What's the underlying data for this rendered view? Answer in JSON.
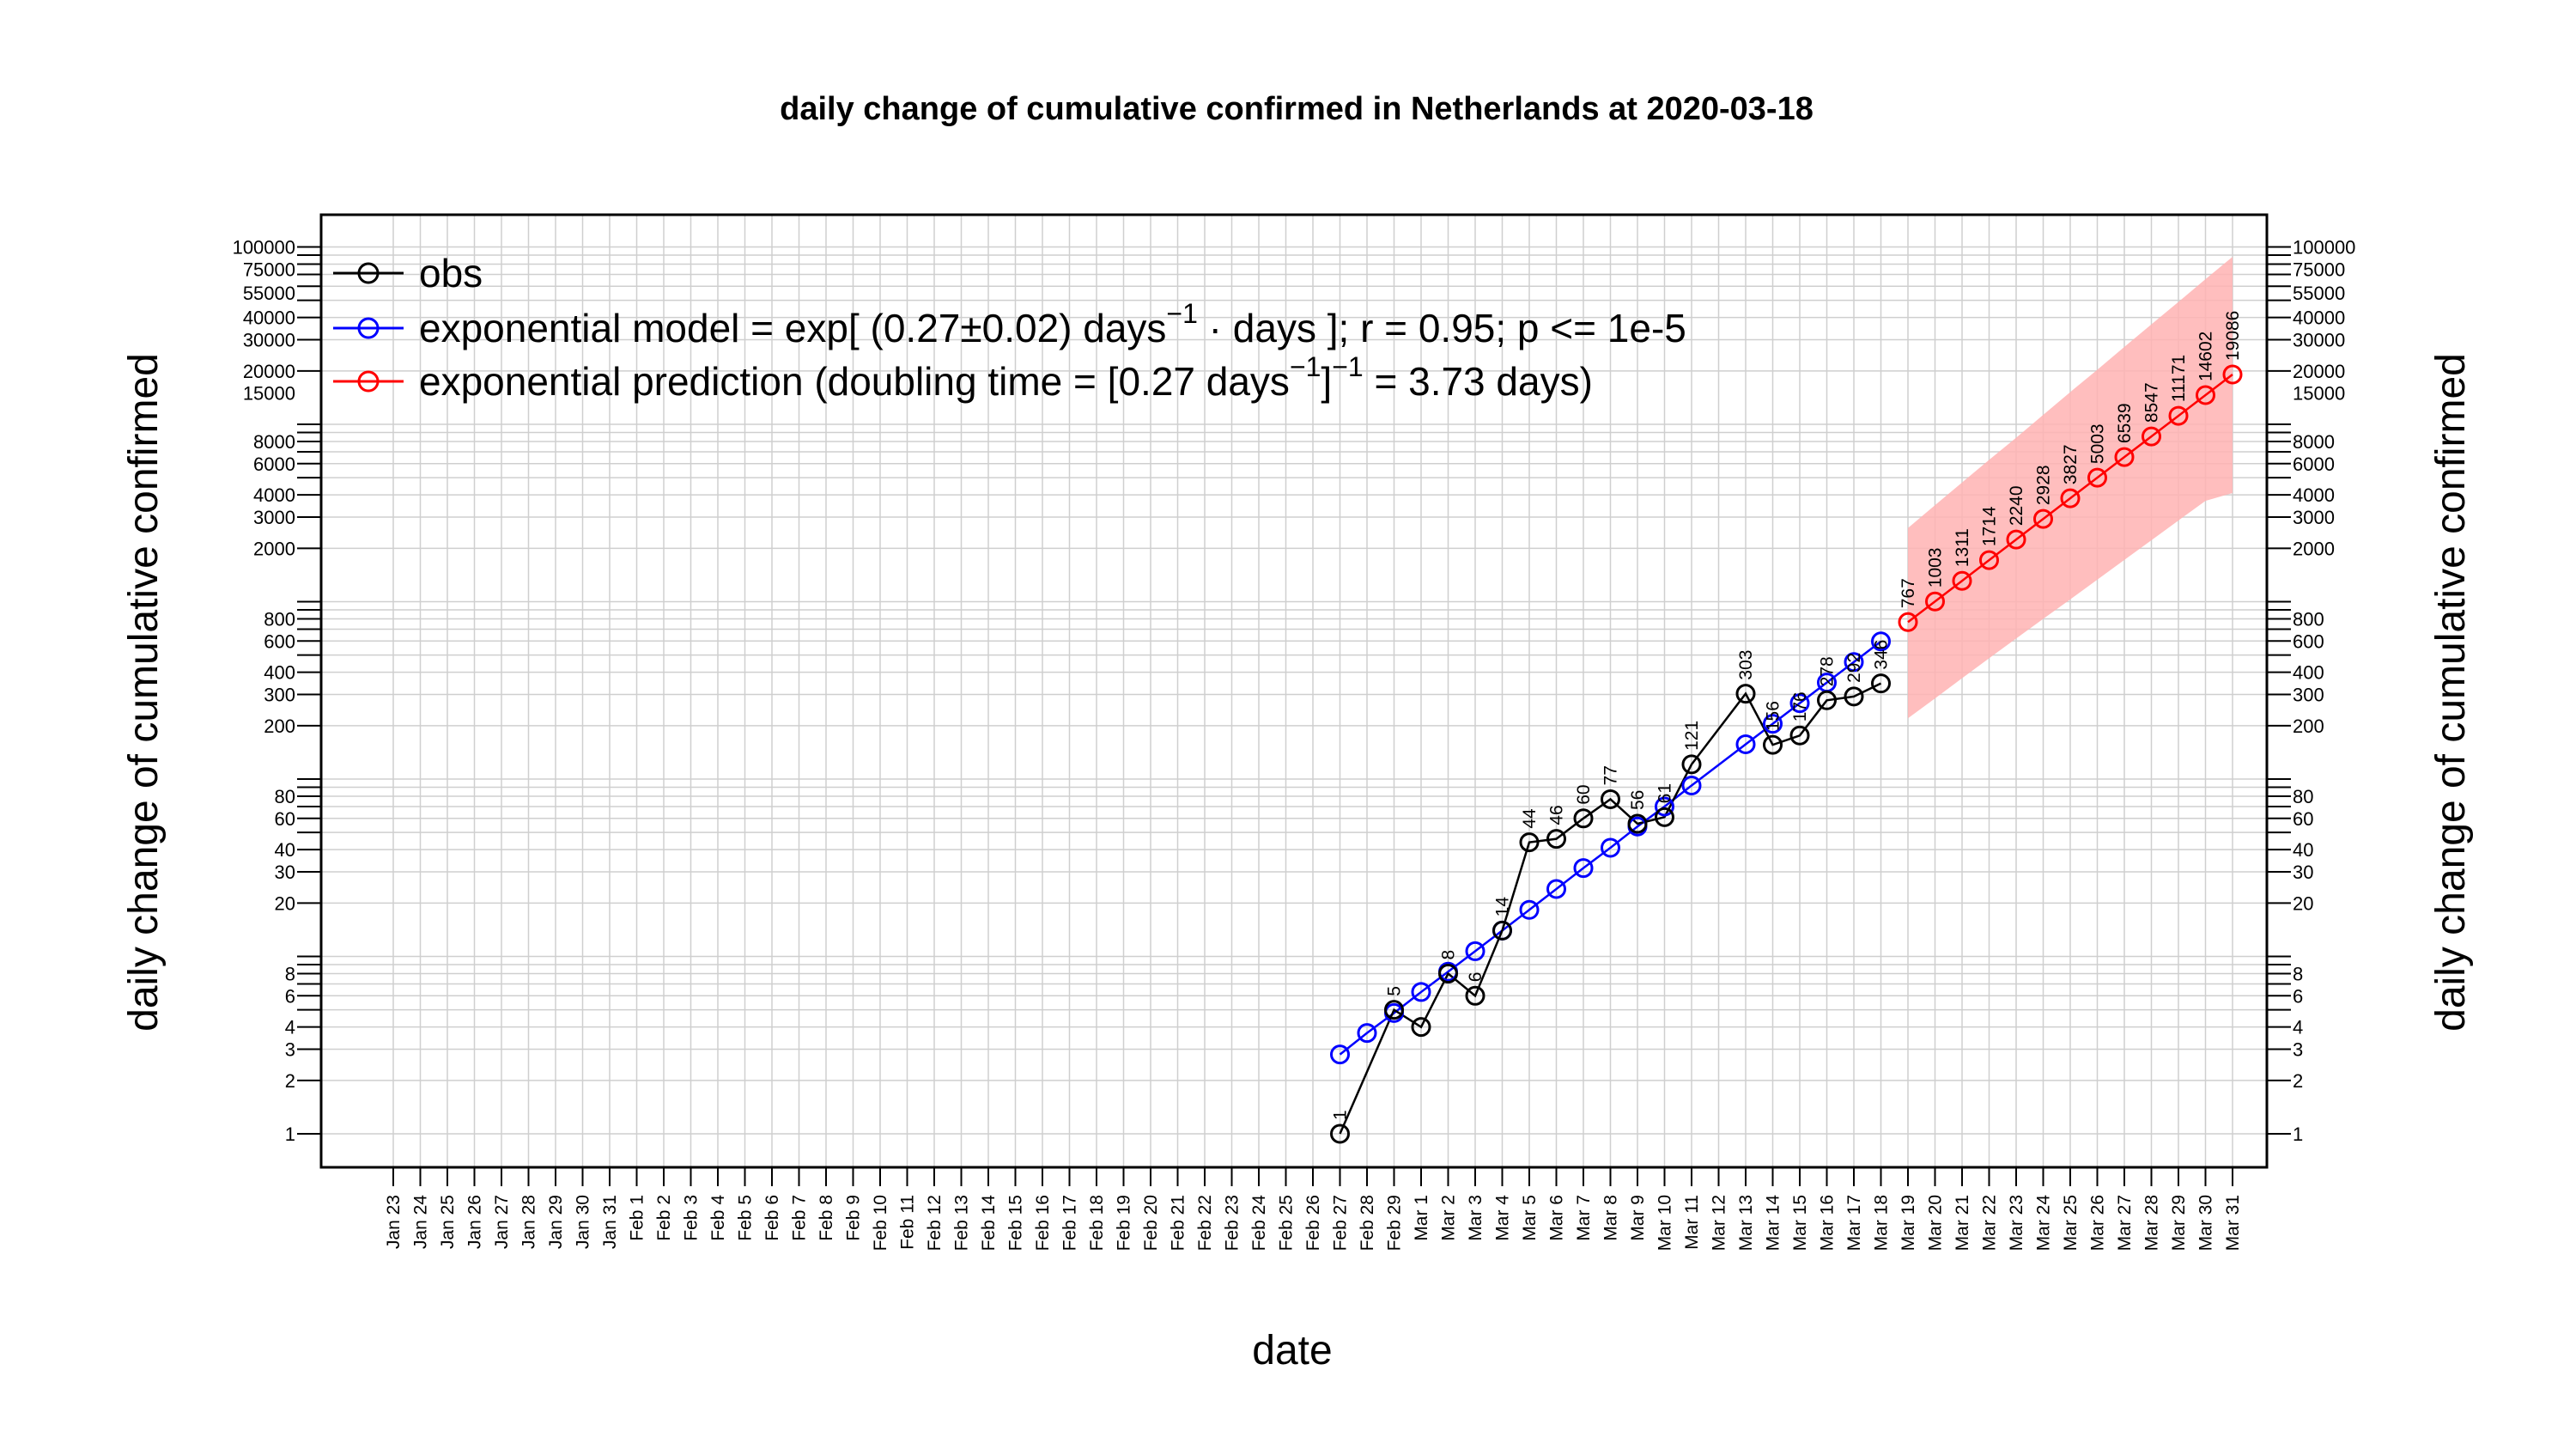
{
  "chart_data": {
    "type": "line",
    "title": "daily change of cumulative confirmed in Netherlands at 2020-03-18",
    "xlabel": "date",
    "ylabel": "daily change of cumulative confirmed",
    "y_scale": "log",
    "ylim": [
      0.7,
      140000
    ],
    "grid": true,
    "legend_position": "top-left",
    "y_ticks": [
      1,
      2,
      3,
      4,
      6,
      8,
      20,
      30,
      40,
      60,
      80,
      200,
      300,
      400,
      600,
      800,
      2000,
      3000,
      4000,
      6000,
      8000,
      15000,
      20000,
      30000,
      40000,
      55000,
      75000,
      100000
    ],
    "x_labels": [
      "Jan 23",
      "Jan 24",
      "Jan 25",
      "Jan 26",
      "Jan 27",
      "Jan 28",
      "Jan 29",
      "Jan 30",
      "Jan 31",
      "Feb 1",
      "Feb 2",
      "Feb 3",
      "Feb 4",
      "Feb 5",
      "Feb 6",
      "Feb 7",
      "Feb 8",
      "Feb 9",
      "Feb 10",
      "Feb 11",
      "Feb 12",
      "Feb 13",
      "Feb 14",
      "Feb 15",
      "Feb 16",
      "Feb 17",
      "Feb 18",
      "Feb 19",
      "Feb 20",
      "Feb 21",
      "Feb 22",
      "Feb 23",
      "Feb 24",
      "Feb 25",
      "Feb 26",
      "Feb 27",
      "Feb 28",
      "Feb 29",
      "Mar 1",
      "Mar 2",
      "Mar 3",
      "Mar 4",
      "Mar 5",
      "Mar 6",
      "Mar 7",
      "Mar 8",
      "Mar 9",
      "Mar 10",
      "Mar 11",
      "Mar 12",
      "Mar 13",
      "Mar 14",
      "Mar 15",
      "Mar 16",
      "Mar 17",
      "Mar 18",
      "Mar 19",
      "Mar 20",
      "Mar 21",
      "Mar 22",
      "Mar 23",
      "Mar 24",
      "Mar 25",
      "Mar 26",
      "Mar 27",
      "Mar 28",
      "Mar 29",
      "Mar 30",
      "Mar 31"
    ],
    "legend": [
      {
        "label": "obs",
        "color": "#000000"
      },
      {
        "label_parts": [
          "exponential model = exp[ (0.27",
          "±",
          "0.02) days",
          "−1",
          " · ",
          " days ]; r = 0.95; p <= 1e-5"
        ],
        "color": "#0000ff"
      },
      {
        "label_parts": [
          "exponential prediction (doubling time = [0.27 days",
          "−1",
          "]",
          "−1",
          " = 3.73 days)"
        ],
        "color": "#ff0000"
      }
    ],
    "series": [
      {
        "name": "obs",
        "color": "#000000",
        "x": [
          "Feb 27",
          "Feb 29",
          "Mar 1",
          "Mar 2",
          "Mar 3",
          "Mar 4",
          "Mar 5",
          "Mar 6",
          "Mar 7",
          "Mar 8",
          "Mar 9",
          "Mar 10",
          "Mar 11",
          "Mar 13",
          "Mar 14",
          "Mar 15",
          "Mar 16",
          "Mar 17",
          "Mar 18"
        ],
        "values": [
          1,
          5,
          4,
          8,
          6,
          14,
          44,
          46,
          60,
          77,
          56,
          61,
          121,
          303,
          156,
          176,
          278,
          292,
          346
        ],
        "labels": [
          "1",
          "5",
          "",
          "8",
          "6",
          "14",
          "44",
          "46",
          "60",
          "77",
          "56",
          "61",
          "121",
          "303",
          "156",
          "176",
          "278",
          "292",
          "346"
        ]
      },
      {
        "name": "exponential model",
        "color": "#0000ff",
        "x": [
          "Feb 27",
          "Feb 28",
          "Feb 29",
          "Mar 1",
          "Mar 2",
          "Mar 3",
          "Mar 4",
          "Mar 5",
          "Mar 6",
          "Mar 7",
          "Mar 8",
          "Mar 9",
          "Mar 10",
          "Mar 11",
          "Mar 13",
          "Mar 14",
          "Mar 15",
          "Mar 16",
          "Mar 17",
          "Mar 18"
        ],
        "values": [
          2.8,
          3.7,
          4.8,
          6.3,
          8.2,
          10.7,
          14,
          18.3,
          24,
          31.5,
          41,
          54,
          70,
          92,
          157,
          205,
          268,
          350,
          457,
          597
        ]
      },
      {
        "name": "exponential prediction",
        "color": "#ff0000",
        "x": [
          "Mar 19",
          "Mar 20",
          "Mar 21",
          "Mar 22",
          "Mar 23",
          "Mar 24",
          "Mar 25",
          "Mar 26",
          "Mar 27",
          "Mar 28",
          "Mar 29",
          "Mar 30",
          "Mar 31"
        ],
        "values": [
          767,
          1003,
          1311,
          1714,
          2240,
          2928,
          3827,
          5003,
          6539,
          8547,
          11171,
          14602,
          19086
        ],
        "labels": [
          "767",
          "1003",
          "1311",
          "1714",
          "2240",
          "2928",
          "3827",
          "5003",
          "6539",
          "8547",
          "11171",
          "14602",
          "19086"
        ],
        "band_lower": [
          220,
          285,
          370,
          480,
          620,
          800,
          1030,
          1330,
          1720,
          2220,
          2870,
          3700,
          4100
        ],
        "band_upper": [
          2600,
          3500,
          4700,
          6300,
          8400,
          11300,
          15200,
          20300,
          27300,
          36600,
          49000,
          65800,
          88000
        ],
        "band_color": "#ffb3b3"
      }
    ]
  }
}
